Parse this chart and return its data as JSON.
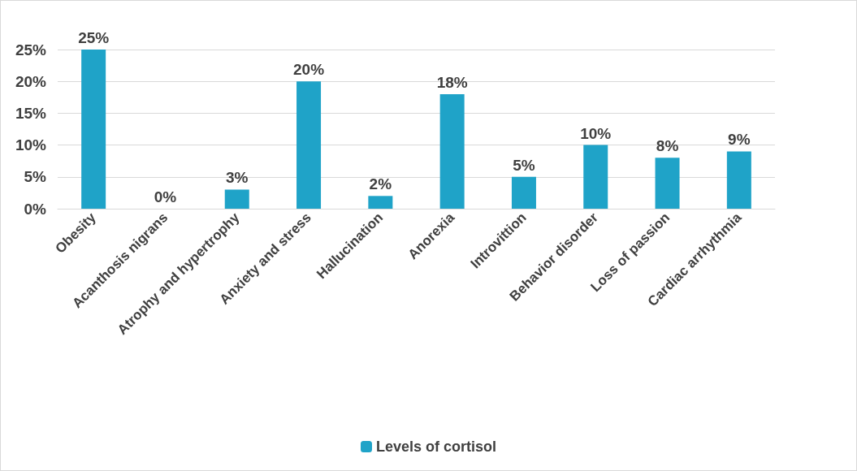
{
  "chart_data": {
    "type": "bar",
    "categories": [
      "Obesity",
      "Acanthosis nigrans",
      "Atrophy and hypertrophy",
      "Anxiety and stress",
      "Hallucination",
      "Anorexia",
      "Introvittion",
      "Behavior disorder",
      "Loss of passion",
      "Cardiac arrhythmia"
    ],
    "series": [
      {
        "name": "Levels of cortisol",
        "color": "#1fa3c8",
        "values": [
          25,
          0,
          3,
          20,
          2,
          18,
          5,
          10,
          8,
          9
        ],
        "value_labels": [
          "25%",
          "0%",
          "3%",
          "20%",
          "2%",
          "18%",
          "5%",
          "10%",
          "8%",
          "9%"
        ]
      }
    ],
    "ylim": [
      0,
      25
    ],
    "yticks": [
      {
        "value": 0,
        "label": "0%"
      },
      {
        "value": 5,
        "label": "5%"
      },
      {
        "value": 10,
        "label": "10%"
      },
      {
        "value": 15,
        "label": "15%"
      },
      {
        "value": 20,
        "label": "20%"
      },
      {
        "value": 25,
        "label": "25%"
      }
    ],
    "grid": "y",
    "legend": "bottom"
  }
}
